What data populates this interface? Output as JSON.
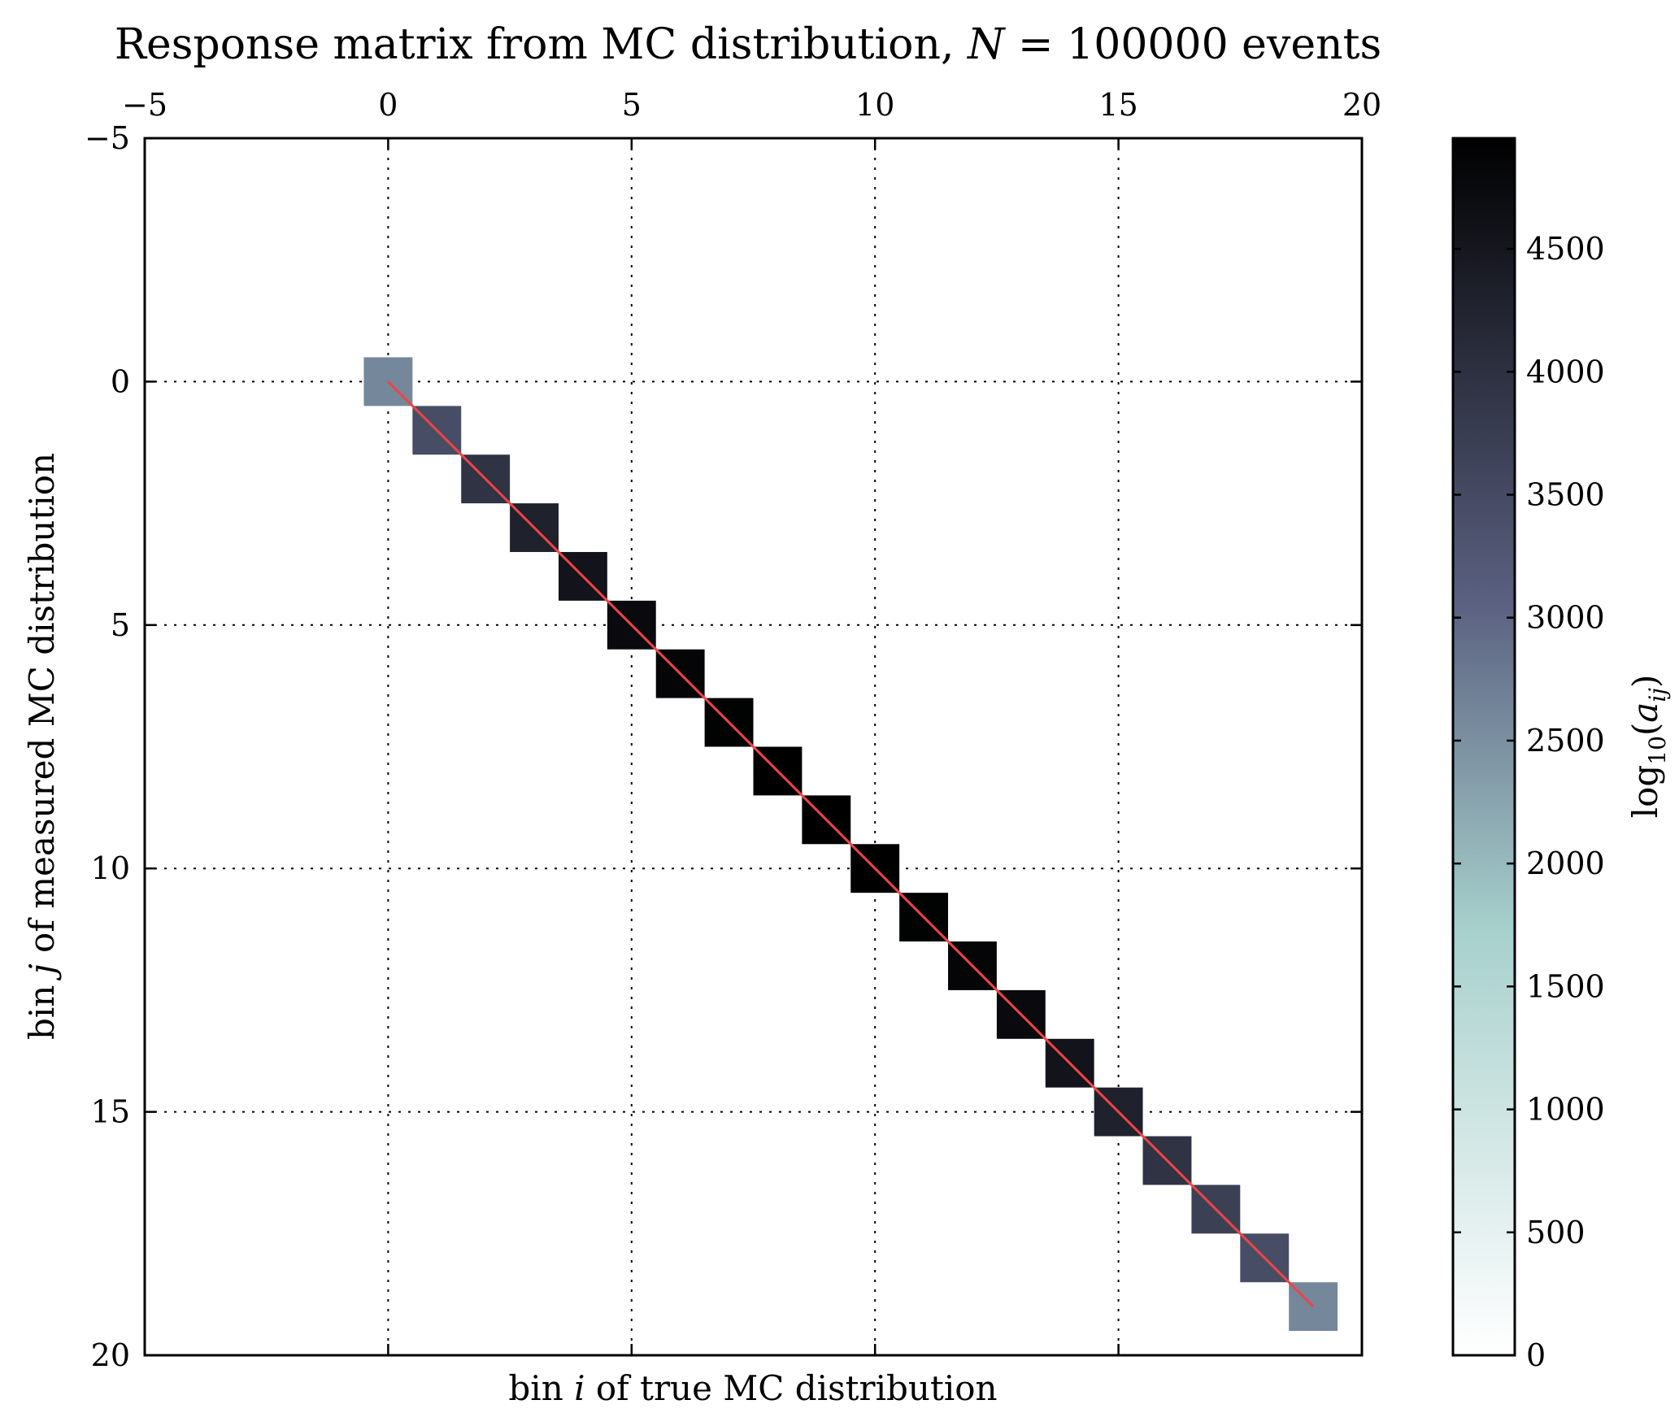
{
  "chart_data": {
    "type": "heatmap",
    "title": "Response matrix from MC distribution, N = 100000 events",
    "title_parts": {
      "prefix": "Response matrix from MC distribution, ",
      "math_var": "N",
      "math_rest": " = 100000",
      "suffix": " events"
    },
    "xlabel": {
      "prefix": "bin ",
      "var": "i",
      "suffix": " of true MC distribution"
    },
    "ylabel": {
      "prefix": "bin ",
      "var": "j",
      "suffix": " of measured MC distribution"
    },
    "colorbar_label": {
      "func": "log",
      "sub": "10",
      "arg_open": "(",
      "var": "a",
      "var_sub": "ij",
      "arg_close": ")"
    },
    "xlim": [
      -5,
      20
    ],
    "ylim": [
      -5,
      20
    ],
    "y_inverted": true,
    "x_axis_position": "top",
    "xticks": [
      "−5",
      "0",
      "5",
      "10",
      "15",
      "20"
    ],
    "yticks": [
      "−5",
      "0",
      "5",
      "10",
      "15",
      "20"
    ],
    "xtick_values": [
      -5,
      0,
      5,
      10,
      15,
      20
    ],
    "ytick_values": [
      -5,
      0,
      5,
      10,
      15,
      20
    ],
    "grid": true,
    "colorbar_range": [
      0,
      4950
    ],
    "colorbar_ticks": [
      "0",
      "500",
      "1000",
      "1500",
      "2000",
      "2500",
      "3000",
      "3500",
      "4000",
      "4500"
    ],
    "colorbar_tick_values": [
      0,
      500,
      1000,
      1500,
      2000,
      2500,
      3000,
      3500,
      4000,
      4500
    ],
    "colormap": [
      "#ffffff",
      "#a7d0cc",
      "#5a6080",
      "#000000"
    ],
    "cells": [
      {
        "i": 0,
        "j": 0,
        "value": 2600
      },
      {
        "i": 1,
        "j": 1,
        "value": 3450
      },
      {
        "i": 2,
        "j": 2,
        "value": 3950
      },
      {
        "i": 3,
        "j": 3,
        "value": 4300
      },
      {
        "i": 4,
        "j": 4,
        "value": 4550
      },
      {
        "i": 5,
        "j": 5,
        "value": 4750
      },
      {
        "i": 6,
        "j": 6,
        "value": 4850
      },
      {
        "i": 7,
        "j": 7,
        "value": 4920
      },
      {
        "i": 8,
        "j": 8,
        "value": 4950
      },
      {
        "i": 9,
        "j": 9,
        "value": 4950
      },
      {
        "i": 10,
        "j": 10,
        "value": 4950
      },
      {
        "i": 11,
        "j": 11,
        "value": 4920
      },
      {
        "i": 12,
        "j": 12,
        "value": 4850
      },
      {
        "i": 13,
        "j": 13,
        "value": 4750
      },
      {
        "i": 14,
        "j": 14,
        "value": 4550
      },
      {
        "i": 15,
        "j": 15,
        "value": 4300
      },
      {
        "i": 16,
        "j": 16,
        "value": 3950
      },
      {
        "i": 17,
        "j": 17,
        "value": 3700
      },
      {
        "i": 18,
        "j": 18,
        "value": 3450
      },
      {
        "i": 19,
        "j": 19,
        "value": 2600
      }
    ],
    "diagonal_line": {
      "from": [
        0,
        0
      ],
      "to": [
        19,
        19
      ],
      "color": "#ee4444"
    }
  }
}
